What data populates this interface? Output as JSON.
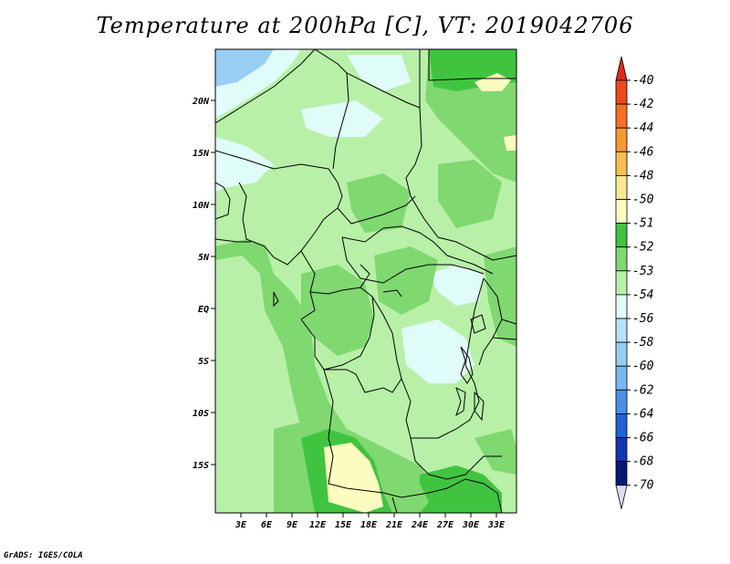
{
  "title": "Temperature at 200hPa [C], VT: 2019042706",
  "credit": "GrADS: IGES/COLA",
  "lat_ticks": [
    "20N",
    "15N",
    "10N",
    "5N",
    "EQ",
    "5S",
    "10S",
    "15S"
  ],
  "lon_ticks": [
    "3E",
    "6E",
    "9E",
    "12E",
    "15E",
    "18E",
    "21E",
    "24E",
    "27E",
    "30E",
    "33E"
  ],
  "colorbar": {
    "labels": [
      "-40",
      "-42",
      "-44",
      "-46",
      "-48",
      "-50",
      "-51",
      "-52",
      "-53",
      "-54",
      "-56",
      "-58",
      "-60",
      "-62",
      "-64",
      "-66",
      "-68",
      "-70"
    ],
    "colors": [
      "#e02818",
      "#f04818",
      "#f87020",
      "#f89830",
      "#f8c050",
      "#f8e890",
      "#fcfcc0",
      "#40c440",
      "#80d870",
      "#b8f0a8",
      "#e0fcf8",
      "#b8e0f8",
      "#98cef4",
      "#78b8f0",
      "#4890e8",
      "#2060d8",
      "#1038b0",
      "#081878",
      "#dcdcf8"
    ]
  },
  "colors": {
    "sea": "#b8f0a8",
    "ocean_band": "#80d870",
    "cold": "#e0fcf8",
    "very_cold": "#98cef4",
    "warm": "#fcfcc0",
    "deep_green": "#40c440"
  }
}
